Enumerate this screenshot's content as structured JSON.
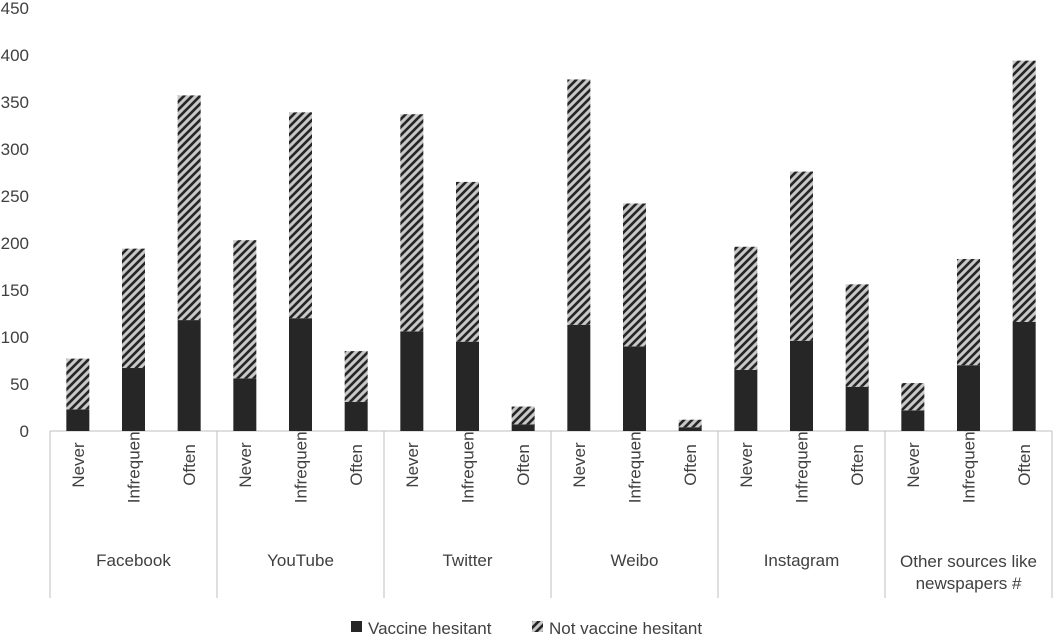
{
  "chart_data": {
    "type": "bar",
    "stacked": true,
    "groups": [
      {
        "label": [
          "Facebook"
        ],
        "categories": [
          "Never",
          "Infrequent",
          "Often"
        ]
      },
      {
        "label": [
          "YouTube"
        ],
        "categories": [
          "Never",
          "Infrequent",
          "Often"
        ]
      },
      {
        "label": [
          "Twitter"
        ],
        "categories": [
          "Never",
          "Infrequent",
          "Often"
        ]
      },
      {
        "label": [
          "Weibo"
        ],
        "categories": [
          "Never",
          "Infrequent",
          "Often"
        ]
      },
      {
        "label": [
          "Instagram"
        ],
        "categories": [
          "Never",
          "Infrequent",
          "Often"
        ]
      },
      {
        "label": [
          "Other sources like",
          "newspapers #"
        ],
        "categories": [
          "Never",
          "Infrequent",
          "Often"
        ]
      }
    ],
    "series": [
      {
        "name": "Vaccine hesitant",
        "color": "#262626",
        "pattern": "solid",
        "values": [
          23,
          67,
          118,
          56,
          120,
          31,
          106,
          95,
          7,
          113,
          90,
          4,
          65,
          96,
          47,
          22,
          70,
          116
        ]
      },
      {
        "name": "Not vaccine hesitant",
        "color": "#262626",
        "pattern": "diagonal-hatch",
        "values": [
          54,
          127,
          239,
          147,
          219,
          54,
          231,
          170,
          19,
          261,
          152,
          8,
          131,
          180,
          109,
          29,
          113,
          278
        ]
      }
    ],
    "yaxis": {
      "min": 0,
      "max": 450,
      "step": 50
    },
    "title": "",
    "xlabel": "",
    "ylabel": "",
    "grid": false,
    "legend_position": "bottom"
  }
}
